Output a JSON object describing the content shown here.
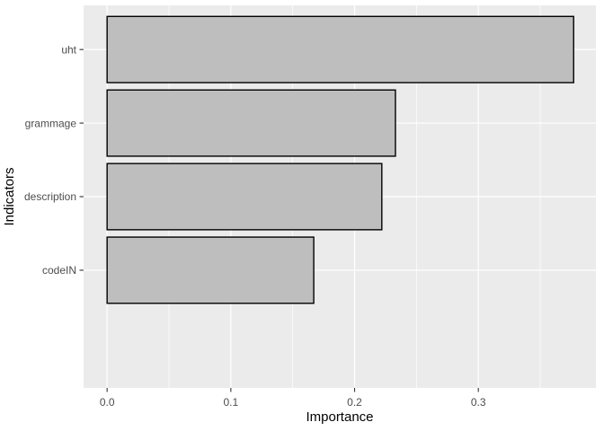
{
  "chart_data": {
    "type": "bar",
    "orientation": "horizontal",
    "title": "",
    "xlabel": "Importance",
    "ylabel": "Indicators",
    "categories": [
      "uht",
      "grammage",
      "description",
      "codeIN"
    ],
    "values": [
      0.377,
      0.233,
      0.222,
      0.167
    ],
    "x_ticks": [
      0.0,
      0.1,
      0.2,
      0.3
    ],
    "x_tick_labels": [
      "0.0",
      "0.1",
      "0.2",
      "0.3"
    ],
    "x_minor_ticks": [
      0.05,
      0.15,
      0.25,
      0.35
    ],
    "xlim": [
      -0.019,
      0.395
    ],
    "bar_width_ratio": 0.9,
    "grid": true,
    "legend": "none",
    "colors": {
      "background": "#FFFFFF",
      "panel": "#EBEBEB",
      "grid_major": "#FFFFFF",
      "grid_minor": "#FFFFFF",
      "bar_fill": "#BEBEBE",
      "bar_stroke": "#000000",
      "tick_mark": "#333333",
      "tick_label": "#4D4D4D",
      "axis_title": "#000000"
    }
  }
}
